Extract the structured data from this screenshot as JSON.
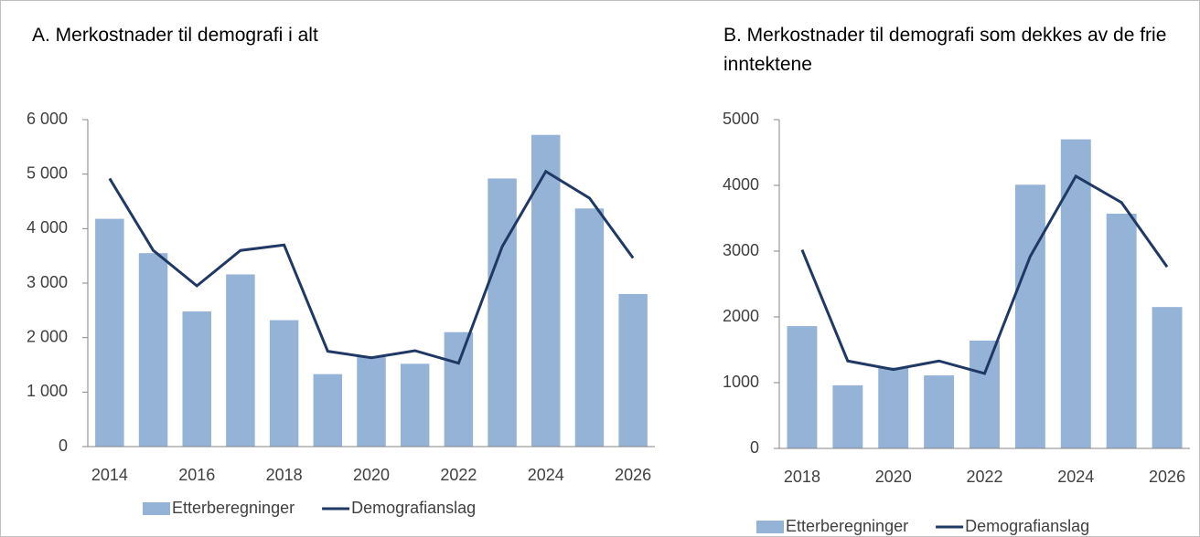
{
  "chart_data": [
    {
      "type": "bar-line",
      "title": "A. Merkostnader til demografi i alt",
      "categories": [
        "2014",
        null,
        "2016",
        null,
        "2018",
        null,
        "2020",
        null,
        "2022",
        null,
        "2024",
        null,
        "2026"
      ],
      "series": [
        {
          "name": "Etterberegninger",
          "type": "bar",
          "color": "#95b3d7",
          "values": [
            4180,
            3550,
            2480,
            3160,
            2320,
            1330,
            1650,
            1520,
            2100,
            4920,
            5720,
            4370,
            2800
          ]
        },
        {
          "name": "Demografianslag",
          "type": "line",
          "color": "#1f3864",
          "values": [
            4920,
            3600,
            2950,
            3600,
            3700,
            1750,
            1630,
            1760,
            1530,
            3670,
            5050,
            4560,
            3460
          ]
        }
      ],
      "ylim": [
        0,
        6000
      ],
      "yticks": [
        0,
        {
          "value": 1000,
          "label": "1 000"
        },
        {
          "value": 2000,
          "label": "2 000"
        },
        {
          "value": 3000,
          "label": "3 000"
        },
        {
          "value": 4000,
          "label": "4 000"
        },
        {
          "value": 5000,
          "label": "5 000"
        },
        {
          "value": 6000,
          "label": "6 000"
        }
      ],
      "grid": false,
      "legend": "bottom"
    },
    {
      "type": "bar-line",
      "title": "B. Merkostnader til demografi som dekkes av de frie inntektene",
      "categories": [
        "2018",
        null,
        "2020",
        null,
        "2022",
        null,
        "2024",
        null,
        "2026"
      ],
      "series": [
        {
          "name": "Etterberegninger",
          "type": "bar",
          "color": "#95b3d7",
          "values": [
            1860,
            960,
            1230,
            1110,
            1640,
            4010,
            4700,
            3570,
            2150
          ]
        },
        {
          "name": "Demografianslag",
          "type": "line",
          "color": "#1f3864",
          "values": [
            3020,
            1330,
            1200,
            1330,
            1140,
            2920,
            4140,
            3740,
            2760
          ]
        }
      ],
      "ylim": [
        0,
        5000
      ],
      "yticks": [
        0,
        1000,
        2000,
        3000,
        4000,
        5000
      ],
      "grid": false,
      "legend": "bottom"
    }
  ]
}
